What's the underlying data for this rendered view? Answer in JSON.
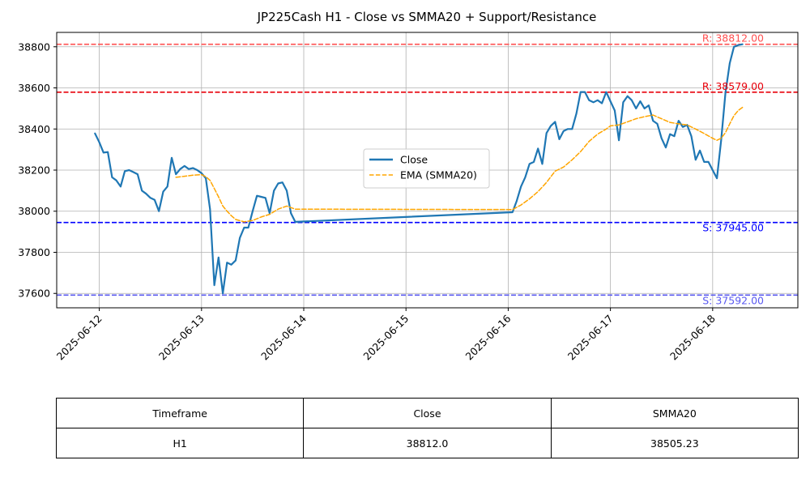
{
  "chart_data": {
    "type": "line",
    "title": "JP225Cash H1 - Close vs SMMA20 + Support/Resistance",
    "xlabel": "",
    "ylabel": "",
    "x_ticks": [
      "2025-06-12",
      "2025-06-13",
      "2025-06-14",
      "2025-06-15",
      "2025-06-16",
      "2025-06-17",
      "2025-06-18"
    ],
    "y_ticks": [
      37600,
      37800,
      38000,
      38200,
      38400,
      38600,
      38800
    ],
    "xlim": [
      "2025-06-11 14:00",
      "2025-06-18 20:00"
    ],
    "ylim": [
      37530,
      38870
    ],
    "grid": true,
    "legend_position": "center-right",
    "series": [
      {
        "name": "Close",
        "color": "#1f77b4",
        "style": "solid",
        "points": [
          [
            "2025-06-11 23:00",
            38378
          ],
          [
            "2025-06-12 00:00",
            38335
          ],
          [
            "2025-06-12 01:00",
            38285
          ],
          [
            "2025-06-12 02:00",
            38288
          ],
          [
            "2025-06-12 03:00",
            38165
          ],
          [
            "2025-06-12 04:00",
            38150
          ],
          [
            "2025-06-12 05:00",
            38120
          ],
          [
            "2025-06-12 06:00",
            38195
          ],
          [
            "2025-06-12 07:00",
            38200
          ],
          [
            "2025-06-12 08:00",
            38190
          ],
          [
            "2025-06-12 09:00",
            38180
          ],
          [
            "2025-06-12 10:00",
            38100
          ],
          [
            "2025-06-12 11:00",
            38085
          ],
          [
            "2025-06-12 12:00",
            38065
          ],
          [
            "2025-06-12 13:00",
            38055
          ],
          [
            "2025-06-12 14:00",
            38000
          ],
          [
            "2025-06-12 15:00",
            38095
          ],
          [
            "2025-06-12 16:00",
            38120
          ],
          [
            "2025-06-12 17:00",
            38260
          ],
          [
            "2025-06-12 18:00",
            38180
          ],
          [
            "2025-06-12 19:00",
            38205
          ],
          [
            "2025-06-12 20:00",
            38220
          ],
          [
            "2025-06-12 21:00",
            38205
          ],
          [
            "2025-06-12 22:00",
            38210
          ],
          [
            "2025-06-12 23:00",
            38200
          ],
          [
            "2025-06-13 00:00",
            38185
          ],
          [
            "2025-06-13 01:00",
            38160
          ],
          [
            "2025-06-13 02:00",
            38010
          ],
          [
            "2025-06-13 03:00",
            37640
          ],
          [
            "2025-06-13 04:00",
            37775
          ],
          [
            "2025-06-13 05:00",
            37600
          ],
          [
            "2025-06-13 06:00",
            37750
          ],
          [
            "2025-06-13 07:00",
            37740
          ],
          [
            "2025-06-13 08:00",
            37760
          ],
          [
            "2025-06-13 09:00",
            37870
          ],
          [
            "2025-06-13 10:00",
            37920
          ],
          [
            "2025-06-13 11:00",
            37920
          ],
          [
            "2025-06-13 12:00",
            38000
          ],
          [
            "2025-06-13 13:00",
            38075
          ],
          [
            "2025-06-13 14:00",
            38070
          ],
          [
            "2025-06-13 15:00",
            38065
          ],
          [
            "2025-06-13 16:00",
            37990
          ],
          [
            "2025-06-13 17:00",
            38100
          ],
          [
            "2025-06-13 18:00",
            38135
          ],
          [
            "2025-06-13 19:00",
            38140
          ],
          [
            "2025-06-13 20:00",
            38100
          ],
          [
            "2025-06-13 21:00",
            37990
          ],
          [
            "2025-06-13 22:00",
            37948
          ],
          [
            "2025-06-16 01:00",
            37995
          ],
          [
            "2025-06-16 02:00",
            38050
          ],
          [
            "2025-06-16 03:00",
            38120
          ],
          [
            "2025-06-16 04:00",
            38165
          ],
          [
            "2025-06-16 05:00",
            38230
          ],
          [
            "2025-06-16 06:00",
            38240
          ],
          [
            "2025-06-16 07:00",
            38305
          ],
          [
            "2025-06-16 08:00",
            38230
          ],
          [
            "2025-06-16 09:00",
            38380
          ],
          [
            "2025-06-16 10:00",
            38415
          ],
          [
            "2025-06-16 11:00",
            38435
          ],
          [
            "2025-06-16 12:00",
            38350
          ],
          [
            "2025-06-16 13:00",
            38390
          ],
          [
            "2025-06-16 14:00",
            38400
          ],
          [
            "2025-06-16 15:00",
            38400
          ],
          [
            "2025-06-16 16:00",
            38475
          ],
          [
            "2025-06-16 17:00",
            38580
          ],
          [
            "2025-06-16 18:00",
            38580
          ],
          [
            "2025-06-16 19:00",
            38540
          ],
          [
            "2025-06-16 20:00",
            38530
          ],
          [
            "2025-06-16 21:00",
            38540
          ],
          [
            "2025-06-16 22:00",
            38525
          ],
          [
            "2025-06-16 23:00",
            38580
          ],
          [
            "2025-06-17 00:00",
            38535
          ],
          [
            "2025-06-17 01:00",
            38490
          ],
          [
            "2025-06-17 02:00",
            38345
          ],
          [
            "2025-06-17 03:00",
            38530
          ],
          [
            "2025-06-17 04:00",
            38560
          ],
          [
            "2025-06-17 05:00",
            38540
          ],
          [
            "2025-06-17 06:00",
            38500
          ],
          [
            "2025-06-17 07:00",
            38535
          ],
          [
            "2025-06-17 08:00",
            38500
          ],
          [
            "2025-06-17 09:00",
            38515
          ],
          [
            "2025-06-17 10:00",
            38440
          ],
          [
            "2025-06-17 11:00",
            38425
          ],
          [
            "2025-06-17 12:00",
            38355
          ],
          [
            "2025-06-17 13:00",
            38310
          ],
          [
            "2025-06-17 14:00",
            38375
          ],
          [
            "2025-06-17 15:00",
            38365
          ],
          [
            "2025-06-17 16:00",
            38440
          ],
          [
            "2025-06-17 17:00",
            38410
          ],
          [
            "2025-06-17 18:00",
            38420
          ],
          [
            "2025-06-17 19:00",
            38365
          ],
          [
            "2025-06-17 20:00",
            38250
          ],
          [
            "2025-06-17 21:00",
            38295
          ],
          [
            "2025-06-17 22:00",
            38240
          ],
          [
            "2025-06-17 23:00",
            38240
          ],
          [
            "2025-06-18 00:00",
            38200
          ],
          [
            "2025-06-18 01:00",
            38160
          ],
          [
            "2025-06-18 02:00",
            38345
          ],
          [
            "2025-06-18 03:00",
            38575
          ],
          [
            "2025-06-18 04:00",
            38720
          ],
          [
            "2025-06-18 05:00",
            38800
          ],
          [
            "2025-06-18 06:00",
            38808
          ],
          [
            "2025-06-18 07:00",
            38812
          ]
        ]
      },
      {
        "name": "EMA (SMMA20)",
        "color": "#ffa500",
        "style": "dashed",
        "points": [
          [
            "2025-06-12 18:00",
            38165
          ],
          [
            "2025-06-12 20:00",
            38170
          ],
          [
            "2025-06-12 22:00",
            38175
          ],
          [
            "2025-06-13 00:00",
            38178
          ],
          [
            "2025-06-13 01:00",
            38168
          ],
          [
            "2025-06-13 02:00",
            38150
          ],
          [
            "2025-06-13 03:00",
            38110
          ],
          [
            "2025-06-13 04:00",
            38070
          ],
          [
            "2025-06-13 05:00",
            38025
          ],
          [
            "2025-06-13 06:00",
            38000
          ],
          [
            "2025-06-13 07:00",
            37978
          ],
          [
            "2025-06-13 08:00",
            37960
          ],
          [
            "2025-06-13 10:00",
            37948
          ],
          [
            "2025-06-13 12:00",
            37955
          ],
          [
            "2025-06-13 14:00",
            37972
          ],
          [
            "2025-06-13 16:00",
            37985
          ],
          [
            "2025-06-13 18:00",
            38010
          ],
          [
            "2025-06-13 20:00",
            38025
          ],
          [
            "2025-06-13 22:00",
            38010
          ],
          [
            "2025-06-16 01:00",
            38008
          ],
          [
            "2025-06-16 03:00",
            38030
          ],
          [
            "2025-06-16 05:00",
            38060
          ],
          [
            "2025-06-16 07:00",
            38095
          ],
          [
            "2025-06-16 09:00",
            38140
          ],
          [
            "2025-06-16 11:00",
            38195
          ],
          [
            "2025-06-16 13:00",
            38215
          ],
          [
            "2025-06-16 15:00",
            38250
          ],
          [
            "2025-06-16 17:00",
            38290
          ],
          [
            "2025-06-16 19:00",
            38340
          ],
          [
            "2025-06-16 21:00",
            38375
          ],
          [
            "2025-06-16 23:00",
            38400
          ],
          [
            "2025-06-17 00:00",
            38415
          ],
          [
            "2025-06-17 02:00",
            38420
          ],
          [
            "2025-06-17 04:00",
            38435
          ],
          [
            "2025-06-17 06:00",
            38450
          ],
          [
            "2025-06-17 08:00",
            38460
          ],
          [
            "2025-06-17 10:00",
            38468
          ],
          [
            "2025-06-17 12:00",
            38450
          ],
          [
            "2025-06-17 14:00",
            38432
          ],
          [
            "2025-06-17 16:00",
            38425
          ],
          [
            "2025-06-17 18:00",
            38420
          ],
          [
            "2025-06-17 20:00",
            38400
          ],
          [
            "2025-06-17 22:00",
            38378
          ],
          [
            "2025-06-18 00:00",
            38355
          ],
          [
            "2025-06-18 01:00",
            38345
          ],
          [
            "2025-06-18 02:00",
            38355
          ],
          [
            "2025-06-18 03:00",
            38382
          ],
          [
            "2025-06-18 04:00",
            38425
          ],
          [
            "2025-06-18 05:00",
            38465
          ],
          [
            "2025-06-18 06:00",
            38490
          ],
          [
            "2025-06-18 07:00",
            38505
          ]
        ]
      }
    ],
    "reference_lines": [
      {
        "kind": "resistance",
        "value": 38812.0,
        "label": "R: 38812.00",
        "color": "#ff5050"
      },
      {
        "kind": "resistance",
        "value": 38579.0,
        "label": "R: 38579.00",
        "color": "#e8000b"
      },
      {
        "kind": "support",
        "value": 37945.0,
        "label": "S: 37945.00",
        "color": "#0000ff"
      },
      {
        "kind": "support",
        "value": 37592.0,
        "label": "S: 37592.00",
        "color": "#5a5af0"
      }
    ]
  },
  "summary_table": {
    "headers": [
      "Timeframe",
      "Close",
      "SMMA20"
    ],
    "row": [
      "H1",
      "38812.0",
      "38505.23"
    ]
  }
}
